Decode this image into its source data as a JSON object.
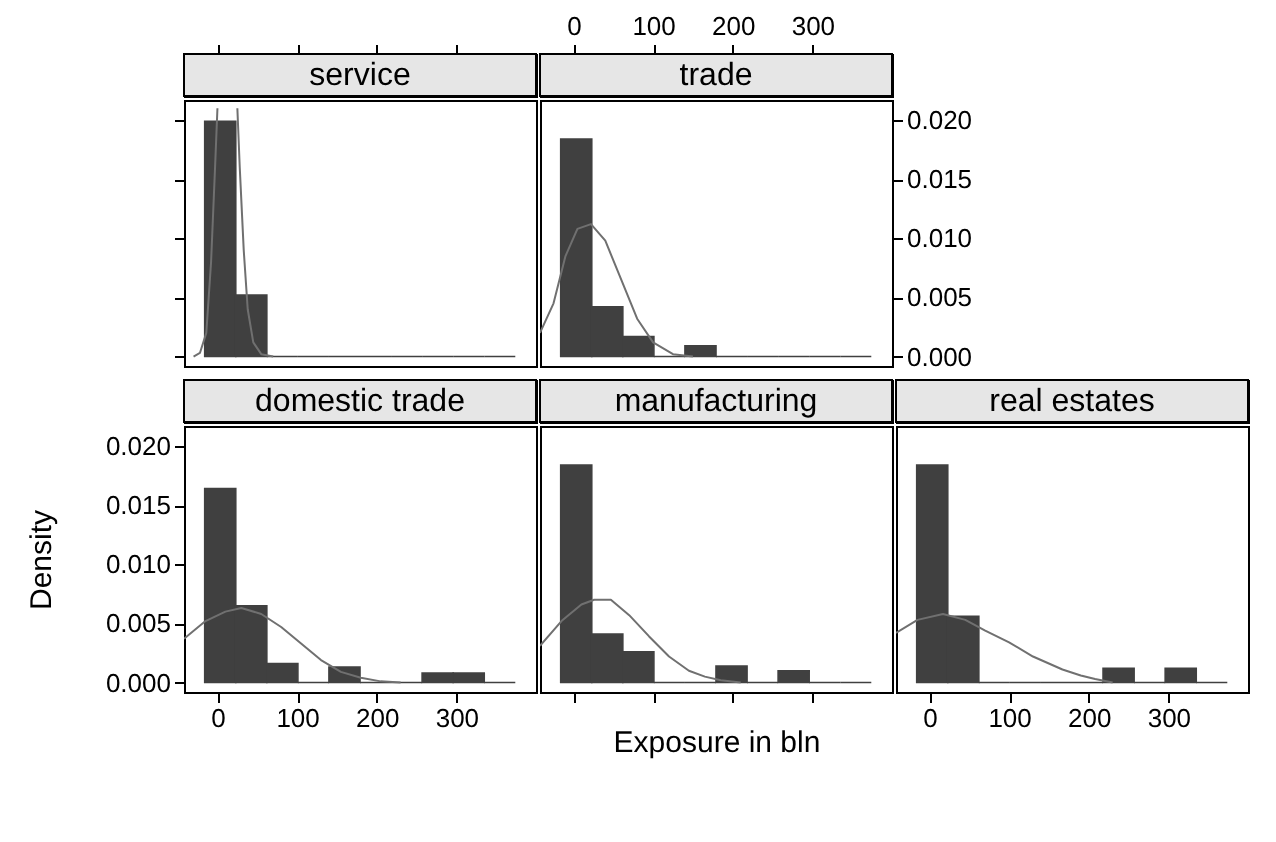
{
  "chart_data": [
    {
      "type": "histogram",
      "title": "service",
      "bins": [
        -16,
        23,
        62,
        101,
        140,
        179,
        218,
        257,
        296,
        335,
        374
      ],
      "xlim": [
        -42,
        400
      ],
      "ylim": [
        -0.0008,
        0.0217
      ],
      "xticks": [
        0,
        100,
        200,
        300
      ],
      "yticks": [
        0,
        0.005,
        0.01,
        0.015,
        0.02
      ],
      "tick_labels": false,
      "series": [
        {
          "type": "histogram",
          "color": "#404040",
          "values": [
            0.0199,
            0.0052,
            0,
            0,
            0,
            0,
            0,
            0,
            0,
            0
          ]
        },
        {
          "type": "line",
          "color": "#707070",
          "x": [
            -30,
            -22,
            -14,
            -8,
            -3,
            0,
            22,
            25,
            28,
            33,
            38,
            45,
            55,
            70
          ],
          "values": [
            0,
            0.0003,
            0.002,
            0.008,
            0.016,
            0.021,
            null,
            0.021,
            0.016,
            0.009,
            0.004,
            0.0012,
            0.0002,
            0
          ]
        }
      ]
    },
    {
      "type": "histogram",
      "title": "trade",
      "bins": [
        -16,
        23,
        62,
        101,
        140,
        179,
        218,
        257,
        296,
        335,
        374
      ],
      "xlim": [
        -42,
        400
      ],
      "ylim": [
        -0.0008,
        0.0217
      ],
      "xticks": [
        0,
        100,
        200,
        300
      ],
      "yticks": [
        {
          "value": 0,
          "label": "0.000"
        },
        {
          "value": 0.005,
          "label": "0.005"
        },
        {
          "value": 0.01,
          "label": "0.010"
        },
        {
          "value": 0.015,
          "label": "0.015"
        },
        {
          "value": 0.02,
          "label": "0.020"
        }
      ],
      "series": [
        {
          "type": "histogram",
          "color": "#404040",
          "values": [
            0.0184,
            0.0042,
            0.0017,
            0,
            0.0009,
            0,
            0,
            0,
            0,
            0
          ]
        },
        {
          "type": "line",
          "color": "#707070",
          "x": [
            -42,
            -25,
            -10,
            5,
            22,
            40,
            60,
            80,
            100,
            125,
            150
          ],
          "values": [
            0.002,
            0.0045,
            0.0085,
            0.0108,
            0.0112,
            0.0098,
            0.0065,
            0.0032,
            0.0012,
            0.0002,
            0
          ]
        }
      ]
    },
    {
      "type": "histogram",
      "title": "domestic trade",
      "ylabel": "Density",
      "bins": [
        -16,
        23,
        62,
        101,
        140,
        179,
        218,
        257,
        296,
        335,
        374
      ],
      "xlim": [
        -42,
        400
      ],
      "ylim": [
        -0.0008,
        0.0217
      ],
      "xticks": [
        0,
        100,
        200,
        300
      ],
      "yticks": [
        {
          "value": 0,
          "label": "0.000"
        },
        {
          "value": 0.005,
          "label": "0.005"
        },
        {
          "value": 0.01,
          "label": "0.010"
        },
        {
          "value": 0.015,
          "label": "0.015"
        },
        {
          "value": 0.02,
          "label": "0.020"
        }
      ],
      "series": [
        {
          "type": "histogram",
          "color": "#404040",
          "values": [
            0.0164,
            0.0065,
            0.0016,
            0,
            0.0013,
            0,
            0,
            0.0008,
            0.0008,
            0
          ]
        },
        {
          "type": "line",
          "color": "#707070",
          "x": [
            -42,
            -15,
            10,
            30,
            55,
            80,
            105,
            130,
            155,
            180,
            205,
            230
          ],
          "values": [
            0.0037,
            0.0052,
            0.006,
            0.0063,
            0.0058,
            0.0047,
            0.0033,
            0.0019,
            0.0009,
            0.0004,
            0.0001,
            0
          ]
        }
      ]
    },
    {
      "type": "histogram",
      "title": "manufacturing",
      "xlabel": "Exposure in bln",
      "bins": [
        -16,
        23,
        62,
        101,
        140,
        179,
        218,
        257,
        296,
        335,
        374
      ],
      "xlim": [
        -42,
        400
      ],
      "ylim": [
        -0.0008,
        0.0217
      ],
      "xticks": [
        0,
        100,
        200,
        300
      ],
      "tick_labels": false,
      "series": [
        {
          "type": "histogram",
          "color": "#404040",
          "values": [
            0.0184,
            0.0041,
            0.0026,
            0,
            0,
            0.0014,
            0,
            0.001,
            0,
            0
          ]
        },
        {
          "type": "line",
          "color": "#707070",
          "x": [
            -42,
            -15,
            10,
            26,
            47,
            70,
            95,
            120,
            145,
            165,
            185,
            210
          ],
          "values": [
            0.0031,
            0.0052,
            0.0066,
            0.007,
            0.007,
            0.0057,
            0.0039,
            0.0022,
            0.001,
            0.0005,
            0.0002,
            0
          ]
        }
      ]
    },
    {
      "type": "histogram",
      "title": "real estates",
      "bins": [
        -16,
        23,
        62,
        101,
        140,
        179,
        218,
        257,
        296,
        335,
        374
      ],
      "xlim": [
        -42,
        400
      ],
      "ylim": [
        -0.0008,
        0.0217
      ],
      "xticks": [
        0,
        100,
        200,
        300
      ],
      "series": [
        {
          "type": "histogram",
          "color": "#404040",
          "values": [
            0.0184,
            0.0056,
            0,
            0,
            0,
            0,
            0.0012,
            0,
            0.0012,
            0
          ]
        },
        {
          "type": "line",
          "color": "#707070",
          "x": [
            -42,
            -15,
            17,
            45,
            70,
            100,
            130,
            167,
            190,
            208,
            230
          ],
          "values": [
            0.0042,
            0.0053,
            0.0058,
            0.0053,
            0.0044,
            0.0034,
            0.0022,
            0.0011,
            0.0006,
            0.0003,
            0
          ]
        }
      ]
    }
  ]
}
